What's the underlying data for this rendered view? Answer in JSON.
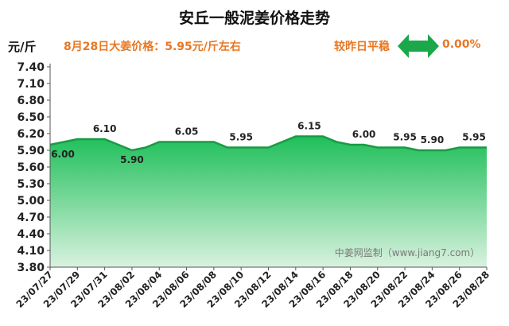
{
  "header": {
    "title": "安丘一般泥姜价格走势",
    "unit": "元/斤",
    "price_line": "8月28日大姜价格：5.95元/斤左右",
    "compare_label": "较昨日平稳",
    "compare_pct": "0.00%"
  },
  "colors": {
    "accent_orange": "#e87722",
    "area_top": "#1fbf5a",
    "area_bottom": "#d9f2df",
    "line": "#1a9a45",
    "arrow": "#1aa84a"
  },
  "icons": {
    "compare_arrow": "double-arrow-icon"
  },
  "watermark": "中姜网监制（www.jiang7.com）",
  "chart_data": {
    "type": "area",
    "title": "安丘一般泥姜价格走势",
    "ylabel": "元/斤",
    "ylim": [
      3.8,
      7.4
    ],
    "yticks": [
      "7.40",
      "7.10",
      "6.80",
      "6.50",
      "6.20",
      "5.90",
      "5.60",
      "5.30",
      "5.00",
      "4.70",
      "4.40",
      "4.10",
      "3.80"
    ],
    "x_tick_labels": [
      "23/07/27",
      "23/07/29",
      "23/07/31",
      "23/08/02",
      "23/08/04",
      "23/08/06",
      "23/08/08",
      "23/08/10",
      "23/08/12",
      "23/08/14",
      "23/08/16",
      "23/08/18",
      "23/08/20",
      "23/08/22",
      "23/08/24",
      "23/08/26",
      "23/08/28"
    ],
    "x": [
      "23/07/27",
      "23/07/28",
      "23/07/29",
      "23/07/30",
      "23/07/31",
      "23/08/01",
      "23/08/02",
      "23/08/03",
      "23/08/04",
      "23/08/05",
      "23/08/06",
      "23/08/07",
      "23/08/08",
      "23/08/09",
      "23/08/10",
      "23/08/11",
      "23/08/12",
      "23/08/13",
      "23/08/14",
      "23/08/15",
      "23/08/16",
      "23/08/17",
      "23/08/18",
      "23/08/19",
      "23/08/20",
      "23/08/21",
      "23/08/22",
      "23/08/23",
      "23/08/24",
      "23/08/25",
      "23/08/26",
      "23/08/27",
      "23/08/28"
    ],
    "values": [
      6.0,
      6.05,
      6.1,
      6.1,
      6.1,
      6.0,
      5.9,
      5.95,
      6.05,
      6.05,
      6.05,
      6.05,
      6.05,
      5.95,
      5.95,
      5.95,
      5.95,
      6.05,
      6.15,
      6.15,
      6.15,
      6.05,
      6.0,
      6.0,
      5.95,
      5.95,
      5.95,
      5.9,
      5.9,
      5.9,
      5.95,
      5.95,
      5.95
    ],
    "data_labels": [
      {
        "x": "23/07/27",
        "text": "6.00",
        "pos": "below"
      },
      {
        "x": "23/07/31",
        "text": "6.10",
        "pos": "above"
      },
      {
        "x": "23/08/02",
        "text": "5.90",
        "pos": "below"
      },
      {
        "x": "23/08/06",
        "text": "6.05",
        "pos": "above"
      },
      {
        "x": "23/08/10",
        "text": "5.95",
        "pos": "above"
      },
      {
        "x": "23/08/15",
        "text": "6.15",
        "pos": "above"
      },
      {
        "x": "23/08/19",
        "text": "6.00",
        "pos": "above"
      },
      {
        "x": "23/08/22",
        "text": "5.95",
        "pos": "above"
      },
      {
        "x": "23/08/24",
        "text": "5.90",
        "pos": "above"
      },
      {
        "x": "23/08/28",
        "text": "5.95",
        "pos": "above"
      }
    ],
    "grid": false,
    "legend": "none"
  }
}
